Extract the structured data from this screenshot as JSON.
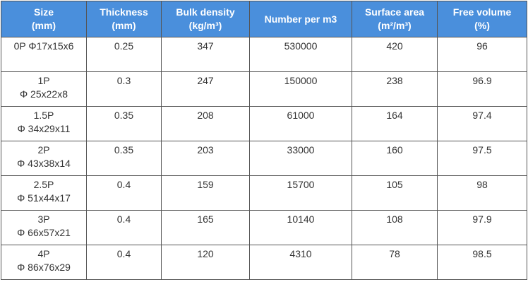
{
  "table": {
    "header": [
      [
        "Size",
        "(mm)"
      ],
      [
        "Thickness",
        "(mm)"
      ],
      [
        "Bulk density",
        "(kg/m³)"
      ],
      [
        "Number per m3"
      ],
      [
        "Surface area",
        "(m²/m³)"
      ],
      [
        "Free volume",
        "(%)"
      ]
    ],
    "rows": [
      [
        [
          "0P Φ17x15x6"
        ],
        "0.25",
        "347",
        "530000",
        "420",
        "96"
      ],
      [
        [
          "1P",
          "Φ 25x22x8"
        ],
        "0.3",
        "247",
        "150000",
        "238",
        "96.9"
      ],
      [
        [
          "1.5P",
          "Φ 34x29x11"
        ],
        "0.35",
        "208",
        "61000",
        "164",
        "97.4"
      ],
      [
        [
          "2P",
          "Φ 43x38x14"
        ],
        "0.35",
        "203",
        "33000",
        "160",
        "97.5"
      ],
      [
        [
          "2.5P",
          "Φ 51x44x17"
        ],
        "0.4",
        "159",
        "15700",
        "105",
        "98"
      ],
      [
        [
          "3P",
          "Φ 66x57x21"
        ],
        "0.4",
        "165",
        "10140",
        "108",
        "97.9"
      ],
      [
        [
          "4P",
          "Φ 86x76x29"
        ],
        "0.4",
        "120",
        "4310",
        "78",
        "98.5"
      ]
    ]
  }
}
